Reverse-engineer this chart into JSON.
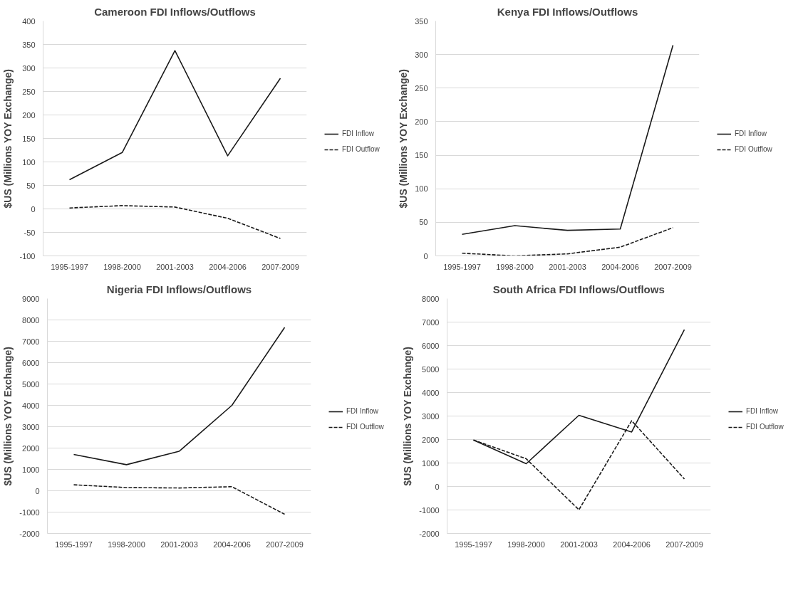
{
  "chart_data": [
    {
      "type": "line",
      "title": "Cameroon FDI Inflows/Outflows",
      "ylabel": "$US (Millions YOY Exchange)",
      "categories": [
        "1995-1997",
        "1998-2000",
        "2001-2003",
        "2004-2006",
        "2007-2009"
      ],
      "ylim": [
        -100,
        400
      ],
      "yticks": [
        -100,
        -50,
        0,
        50,
        100,
        150,
        200,
        250,
        300,
        350,
        400
      ],
      "grid": "y",
      "legend": "right",
      "series": [
        {
          "name": "FDI Inflow",
          "color": "#1a1a1a",
          "line_style": "solid",
          "values": [
            62,
            120,
            337,
            113,
            278
          ]
        },
        {
          "name": "FDI Outflow",
          "color": "#1a1a1a",
          "line_style": "dashed",
          "values": [
            2,
            7,
            4,
            -20,
            -63
          ]
        }
      ]
    },
    {
      "type": "line",
      "title": "Kenya FDI Inflows/Outflows",
      "ylabel": "$US (Millions YOY Exchange)",
      "categories": [
        "1995-1997",
        "1998-2000",
        "2001-2003",
        "2004-2006",
        "2007-2009"
      ],
      "ylim": [
        0,
        350
      ],
      "yticks": [
        0,
        50,
        100,
        150,
        200,
        250,
        300,
        350
      ],
      "grid": "y",
      "legend": "right",
      "series": [
        {
          "name": "FDI Inflow",
          "color": "#1a1a1a",
          "line_style": "solid",
          "values": [
            32,
            45,
            38,
            40,
            314
          ]
        },
        {
          "name": "FDI Outflow",
          "color": "#1a1a1a",
          "line_style": "dashed",
          "values": [
            4,
            0,
            3,
            13,
            42
          ]
        }
      ]
    },
    {
      "type": "line",
      "title": "Nigeria FDI Inflows/Outflows",
      "ylabel": "$US (Millions YOY Exchange)",
      "categories": [
        "1995-1997",
        "1998-2000",
        "2001-2003",
        "2004-2006",
        "2007-2009"
      ],
      "ylim": [
        -2000,
        9000
      ],
      "yticks": [
        -2000,
        -1000,
        0,
        1000,
        2000,
        3000,
        4000,
        5000,
        6000,
        7000,
        8000,
        9000
      ],
      "grid": "y",
      "legend": "right",
      "series": [
        {
          "name": "FDI Inflow",
          "color": "#1a1a1a",
          "line_style": "solid",
          "values": [
            1700,
            1220,
            1850,
            4000,
            7650
          ]
        },
        {
          "name": "FDI Outflow",
          "color": "#1a1a1a",
          "line_style": "dashed",
          "values": [
            280,
            150,
            130,
            190,
            -1100
          ]
        }
      ]
    },
    {
      "type": "line",
      "title": "South Africa FDI Inflows/Outflows",
      "ylabel": "$US (Millions YOY Exchange)",
      "categories": [
        "1995-1997",
        "1998-2000",
        "2001-2003",
        "2004-2006",
        "2007-2009"
      ],
      "ylim": [
        -2000,
        8000
      ],
      "yticks": [
        -2000,
        -1000,
        0,
        1000,
        2000,
        3000,
        4000,
        5000,
        6000,
        7000,
        8000
      ],
      "grid": "y",
      "legend": "right",
      "series": [
        {
          "name": "FDI Inflow",
          "color": "#1a1a1a",
          "line_style": "solid",
          "values": [
            1980,
            970,
            3030,
            2320,
            6680
          ]
        },
        {
          "name": "FDI Outflow",
          "color": "#1a1a1a",
          "line_style": "dashed",
          "values": [
            1980,
            1180,
            -990,
            2800,
            320
          ]
        }
      ]
    }
  ]
}
